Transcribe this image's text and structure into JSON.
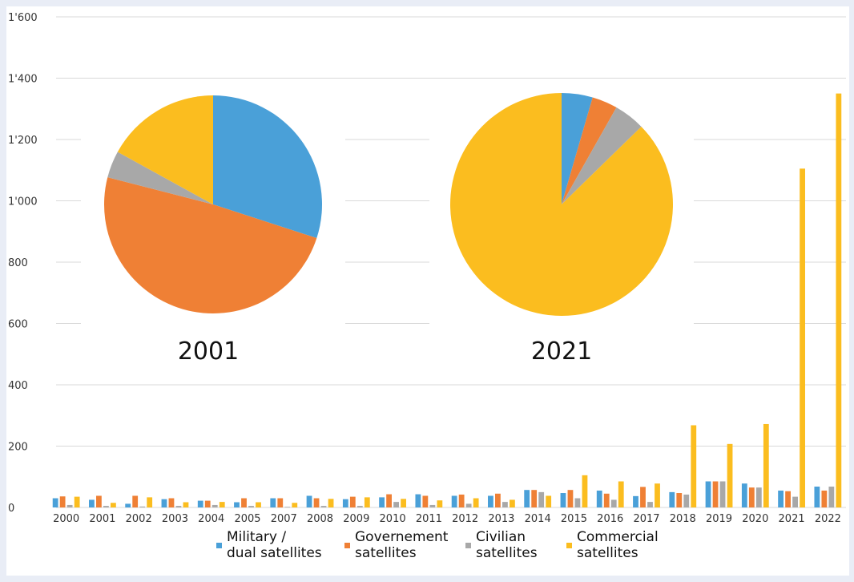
{
  "chart_data": [
    {
      "type": "bar",
      "categories": [
        "2000",
        "2001",
        "2002",
        "2003",
        "2004",
        "2005",
        "2007",
        "2008",
        "2009",
        "2010",
        "2011",
        "2012",
        "2013",
        "2014",
        "2015",
        "2016",
        "2017",
        "2018",
        "2019",
        "2020",
        "2021",
        "2022"
      ],
      "y_tick_labels": [
        "0",
        "200",
        "400",
        "600",
        "800",
        "1'000",
        "1'200",
        "1'400",
        "1'600"
      ],
      "y_ticks": [
        0,
        200,
        400,
        600,
        800,
        1000,
        1200,
        1400,
        1600
      ],
      "ylim": [
        0,
        1600
      ],
      "grid": "horizontal",
      "legend_position": "bottom",
      "series": [
        {
          "name": "Military / dual satellites",
          "legend_lines": [
            "Military /",
            "dual satellites"
          ],
          "color": "#4aa0d8",
          "values": [
            30,
            25,
            12,
            27,
            22,
            17,
            30,
            38,
            27,
            33,
            43,
            38,
            38,
            57,
            47,
            55,
            37,
            50,
            85,
            78,
            55,
            68
          ]
        },
        {
          "name": "Governement satellites",
          "legend_lines": [
            "Governement",
            "satellites"
          ],
          "color": "#ef8035",
          "values": [
            36,
            38,
            38,
            30,
            22,
            30,
            30,
            30,
            35,
            43,
            38,
            42,
            45,
            57,
            57,
            45,
            67,
            47,
            85,
            65,
            53,
            55
          ]
        },
        {
          "name": "Civilian satellites",
          "legend_lines": [
            "Civilian",
            "satellites"
          ],
          "color": "#a8a8a8",
          "values": [
            8,
            5,
            3,
            5,
            8,
            5,
            2,
            5,
            5,
            18,
            8,
            12,
            18,
            50,
            30,
            25,
            18,
            42,
            85,
            65,
            35,
            68
          ]
        },
        {
          "name": "Commercial satellites",
          "legend_lines": [
            "Commercial",
            "satellites"
          ],
          "color": "#fbbd1f",
          "values": [
            35,
            15,
            33,
            17,
            18,
            17,
            15,
            28,
            33,
            28,
            23,
            30,
            25,
            38,
            105,
            85,
            78,
            268,
            207,
            272,
            1105,
            1350
          ]
        }
      ]
    },
    {
      "type": "pie",
      "title": "2001",
      "labels": [
        "Military / dual satellites",
        "Governement satellites",
        "Civilian satellites",
        "Commercial satellites"
      ],
      "values": [
        30,
        49,
        4,
        17
      ],
      "colors": [
        "#4aa0d8",
        "#ef8035",
        "#a8a8a8",
        "#fbbd1f"
      ]
    },
    {
      "type": "pie",
      "title": "2021",
      "labels": [
        "Military / dual satellites",
        "Governement satellites",
        "Civilian satellites",
        "Commercial satellites"
      ],
      "values": [
        4.5,
        3.7,
        4.5,
        87.3
      ],
      "colors": [
        "#4aa0d8",
        "#ef8035",
        "#a8a8a8",
        "#fbbd1f"
      ]
    }
  ]
}
